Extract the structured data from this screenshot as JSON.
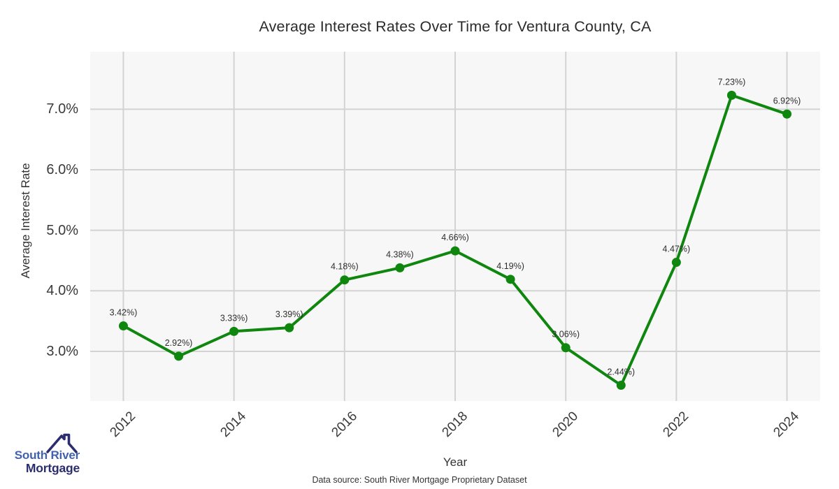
{
  "title": "Average Interest Rates Over Time for Ventura County, CA",
  "axes": {
    "xlabel": "Year",
    "ylabel": "Average Interest Rate"
  },
  "footer": {
    "source": "Data source: South River Mortgage Proprietary Dataset"
  },
  "logo": {
    "line1": "South River",
    "line2": "Mortgage"
  },
  "chart_data": {
    "type": "line",
    "title": "Average Interest Rates Over Time for Ventura County, CA",
    "xlabel": "Year",
    "ylabel": "Average Interest Rate",
    "x": [
      2012,
      2013,
      2014,
      2015,
      2016,
      2017,
      2018,
      2019,
      2020,
      2021,
      2022,
      2023,
      2024
    ],
    "values": [
      3.42,
      2.92,
      3.33,
      3.39,
      4.18,
      4.38,
      4.66,
      4.19,
      3.06,
      2.44,
      4.47,
      7.23,
      6.92
    ],
    "point_labels": [
      "3.42%)",
      "2.92%)",
      "3.33%)",
      "3.39%)",
      "4.18%)",
      "4.38%)",
      "4.66%)",
      "4.19%)",
      "3.06%)",
      "2.44%)",
      "4.47%)",
      "7.23%)",
      "6.92%)"
    ],
    "xticks": [
      2012,
      2014,
      2016,
      2018,
      2020,
      2022,
      2024
    ],
    "xtick_labels": [
      "2012",
      "2014",
      "2016",
      "2018",
      "2020",
      "2022",
      "2024"
    ],
    "yticks": [
      3,
      4,
      5,
      6,
      7
    ],
    "ytick_labels": [
      "3.0%",
      "4.0%",
      "5.0%",
      "6.0%",
      "7.0%"
    ],
    "xlim": [
      2011.4,
      2024.6
    ],
    "ylim": [
      2.18,
      7.95
    ],
    "grid": true,
    "legend_position": "none",
    "line_color": "#0f870f",
    "marker": "circle",
    "plot_bg": "#f7f7f7",
    "grid_color": "#d3d3d3",
    "label_color": "#2f2f2f"
  }
}
